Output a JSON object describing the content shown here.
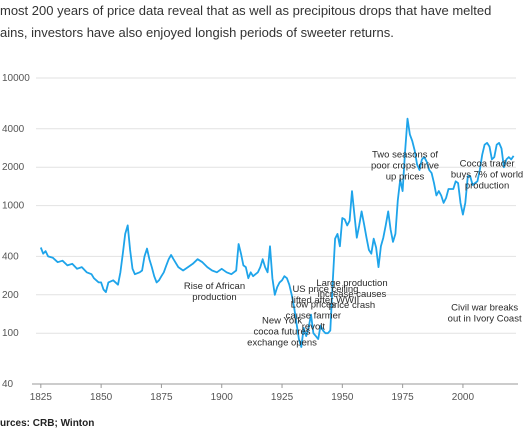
{
  "intro": {
    "line1": "most 200 years of price data reveal that as well as precipitous drops that have melted",
    "line2": "ains, investors have also enjoyed longish periods of sweeter returns."
  },
  "source": "urces: CRB; Winton",
  "colors": {
    "line": "#1ea4ea",
    "grid": "#e2e2e2",
    "axis": "#999999",
    "text": "#2a2a2a"
  },
  "chart_data": {
    "type": "line",
    "y_scale": "log",
    "ylim": [
      40,
      10000
    ],
    "xlim": [
      1823,
      2022
    ],
    "y_ticks": [
      40,
      100,
      200,
      400,
      1000,
      2000,
      4000,
      10000
    ],
    "x_ticks": [
      1825,
      1850,
      1875,
      1900,
      1925,
      1950,
      1975,
      2000
    ],
    "grid": "horizontal",
    "xlabel": "",
    "ylabel": "",
    "series": [
      {
        "values": [
          [
            1825,
            470
          ],
          [
            1826,
            420
          ],
          [
            1827,
            440
          ],
          [
            1828,
            400
          ],
          [
            1830,
            390
          ],
          [
            1832,
            360
          ],
          [
            1834,
            370
          ],
          [
            1836,
            340
          ],
          [
            1838,
            350
          ],
          [
            1840,
            320
          ],
          [
            1842,
            330
          ],
          [
            1844,
            300
          ],
          [
            1846,
            290
          ],
          [
            1847,
            270
          ],
          [
            1848,
            260
          ],
          [
            1849,
            250
          ],
          [
            1850,
            250
          ],
          [
            1851,
            220
          ],
          [
            1852,
            210
          ],
          [
            1853,
            250
          ],
          [
            1855,
            260
          ],
          [
            1857,
            240
          ],
          [
            1858,
            300
          ],
          [
            1859,
            420
          ],
          [
            1860,
            600
          ],
          [
            1861,
            700
          ],
          [
            1862,
            450
          ],
          [
            1863,
            320
          ],
          [
            1864,
            290
          ],
          [
            1866,
            300
          ],
          [
            1867,
            310
          ],
          [
            1868,
            400
          ],
          [
            1869,
            460
          ],
          [
            1870,
            380
          ],
          [
            1871,
            330
          ],
          [
            1872,
            280
          ],
          [
            1873,
            250
          ],
          [
            1874,
            260
          ],
          [
            1875,
            280
          ],
          [
            1876,
            300
          ],
          [
            1877,
            340
          ],
          [
            1878,
            380
          ],
          [
            1879,
            410
          ],
          [
            1880,
            380
          ],
          [
            1882,
            330
          ],
          [
            1884,
            310
          ],
          [
            1886,
            330
          ],
          [
            1888,
            350
          ],
          [
            1890,
            380
          ],
          [
            1892,
            360
          ],
          [
            1894,
            330
          ],
          [
            1896,
            310
          ],
          [
            1898,
            300
          ],
          [
            1900,
            320
          ],
          [
            1902,
            300
          ],
          [
            1904,
            290
          ],
          [
            1906,
            310
          ],
          [
            1907,
            500
          ],
          [
            1908,
            420
          ],
          [
            1909,
            340
          ],
          [
            1910,
            330
          ],
          [
            1911,
            270
          ],
          [
            1912,
            300
          ],
          [
            1913,
            280
          ],
          [
            1914,
            290
          ],
          [
            1915,
            300
          ],
          [
            1916,
            330
          ],
          [
            1917,
            380
          ],
          [
            1918,
            330
          ],
          [
            1919,
            300
          ],
          [
            1920,
            480
          ],
          [
            1921,
            270
          ],
          [
            1922,
            200
          ],
          [
            1923,
            230
          ],
          [
            1924,
            250
          ],
          [
            1925,
            260
          ],
          [
            1926,
            280
          ],
          [
            1927,
            270
          ],
          [
            1928,
            240
          ],
          [
            1929,
            200
          ],
          [
            1930,
            160
          ],
          [
            1931,
            120
          ],
          [
            1932,
            90
          ],
          [
            1933,
            78
          ],
          [
            1934,
            110
          ],
          [
            1935,
            95
          ],
          [
            1936,
            110
          ],
          [
            1937,
            140
          ],
          [
            1938,
            100
          ],
          [
            1939,
            95
          ],
          [
            1940,
            90
          ],
          [
            1941,
            115
          ],
          [
            1942,
            105
          ],
          [
            1943,
            100
          ],
          [
            1944,
            100
          ],
          [
            1945,
            105
          ],
          [
            1946,
            250
          ],
          [
            1947,
            550
          ],
          [
            1948,
            600
          ],
          [
            1949,
            480
          ],
          [
            1950,
            800
          ],
          [
            1951,
            780
          ],
          [
            1952,
            700
          ],
          [
            1953,
            760
          ],
          [
            1954,
            1300
          ],
          [
            1955,
            850
          ],
          [
            1956,
            560
          ],
          [
            1957,
            700
          ],
          [
            1958,
            900
          ],
          [
            1959,
            720
          ],
          [
            1960,
            560
          ],
          [
            1961,
            450
          ],
          [
            1962,
            420
          ],
          [
            1963,
            550
          ],
          [
            1964,
            470
          ],
          [
            1965,
            330
          ],
          [
            1966,
            480
          ],
          [
            1967,
            560
          ],
          [
            1968,
            700
          ],
          [
            1969,
            900
          ],
          [
            1970,
            650
          ],
          [
            1971,
            520
          ],
          [
            1972,
            600
          ],
          [
            1973,
            1100
          ],
          [
            1974,
            1600
          ],
          [
            1975,
            1300
          ],
          [
            1976,
            2600
          ],
          [
            1977,
            4800
          ],
          [
            1978,
            3600
          ],
          [
            1979,
            3200
          ],
          [
            1980,
            2700
          ],
          [
            1981,
            2100
          ],
          [
            1982,
            1900
          ],
          [
            1983,
            2300
          ],
          [
            1984,
            2400
          ],
          [
            1985,
            2200
          ],
          [
            1986,
            1900
          ],
          [
            1987,
            1800
          ],
          [
            1988,
            1500
          ],
          [
            1989,
            1200
          ],
          [
            1990,
            1300
          ],
          [
            1991,
            1200
          ],
          [
            1992,
            1050
          ],
          [
            1993,
            1150
          ],
          [
            1994,
            1350
          ],
          [
            1995,
            1350
          ],
          [
            1996,
            1350
          ],
          [
            1997,
            1550
          ],
          [
            1998,
            1500
          ],
          [
            1999,
            1050
          ],
          [
            2000,
            850
          ],
          [
            2001,
            1050
          ],
          [
            2002,
            1700
          ],
          [
            2003,
            1700
          ],
          [
            2004,
            1450
          ],
          [
            2005,
            1500
          ],
          [
            2006,
            1550
          ],
          [
            2007,
            1900
          ],
          [
            2008,
            2500
          ],
          [
            2009,
            3000
          ],
          [
            2010,
            3100
          ],
          [
            2011,
            2900
          ],
          [
            2012,
            2300
          ],
          [
            2013,
            2400
          ],
          [
            2014,
            3000
          ],
          [
            2015,
            3100
          ],
          [
            2016,
            2800
          ],
          [
            2017,
            2000
          ],
          [
            2018,
            2300
          ],
          [
            2019,
            2400
          ],
          [
            2020,
            2300
          ],
          [
            2021,
            2450
          ]
        ]
      }
    ],
    "annotations": [
      {
        "lines": [
          "Two seasons of",
          "poor crops drive",
          "up prices"
        ],
        "at": [
          1976,
          7400
        ]
      },
      {
        "lines": [
          "Cocoa trader",
          "buys 7% of world",
          "production"
        ],
        "at": [
          2010,
          7100
        ]
      },
      {
        "lines": [
          "New York",
          "cocoa futures",
          "exchange opens"
        ],
        "at": [
          1925,
          1980
        ]
      },
      {
        "lines": [
          "Civil war breaks",
          "out in Ivory Coast"
        ],
        "at": [
          2009,
          2400
        ]
      },
      {
        "lines": [
          "Large production",
          "increase causes",
          "price crash"
        ],
        "at": [
          1954,
          3200
        ]
      },
      {
        "lines": [
          "Rise of African",
          "production"
        ],
        "at": [
          1897,
          3100
        ]
      },
      {
        "lines": [
          "US price ceiling",
          "lifted after WWII"
        ],
        "at": [
          1943,
          3000
        ]
      },
      {
        "lines": [
          "Low prices",
          "cause farmer",
          "revolt"
        ],
        "at": [
          1938,
          2500
        ]
      }
    ]
  }
}
